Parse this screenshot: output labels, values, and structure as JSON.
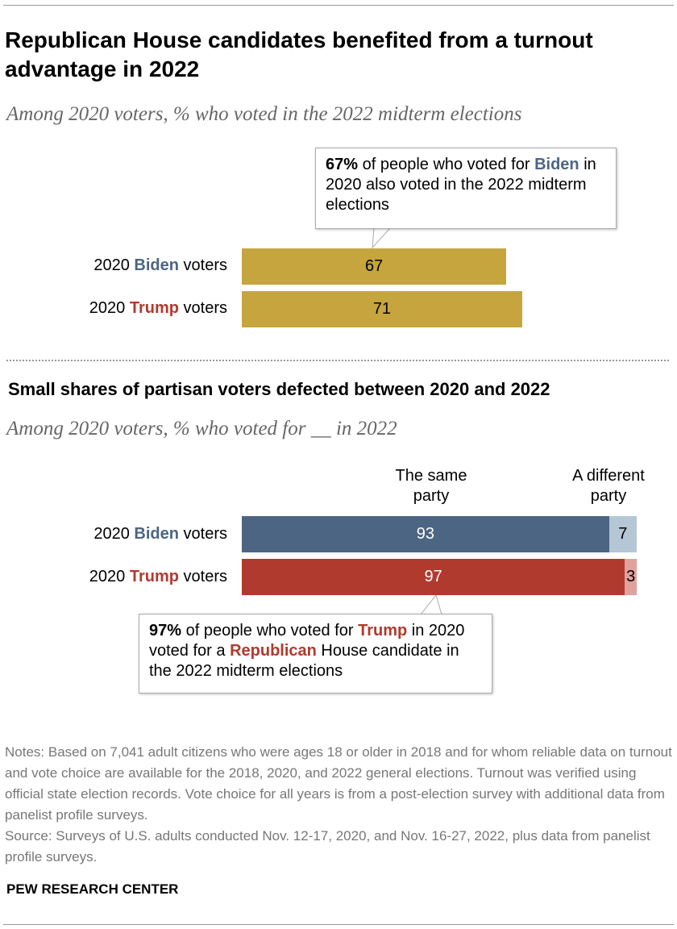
{
  "title": "Republican House candidates benefited from a turnout advantage in 2022",
  "colors": {
    "gold": "#C6A53E",
    "biden": "#4C6583",
    "biden_light": "#B5C6D5",
    "trump": "#B03A2E",
    "trump_light": "#E1A19C"
  },
  "chart_data": [
    {
      "type": "bar",
      "subtitle": "Among 2020 voters, % who voted in the 2022 midterm elections",
      "categories": [
        {
          "prefix": "2020 ",
          "name": "Biden",
          "suffix": " voters"
        },
        {
          "prefix": "2020 ",
          "name": "Trump",
          "suffix": " voters"
        }
      ],
      "values": [
        67,
        71
      ],
      "xlim": [
        0,
        100
      ],
      "callout": {
        "bold": "67%",
        "text1": " of people who voted for ",
        "party": "Biden",
        "text2": " in 2020 also voted in the 2022 midterm elections"
      }
    },
    {
      "type": "bar",
      "stacked": true,
      "title": "Small shares of partisan voters defected between 2020 and 2022",
      "subtitle": "Among 2020 voters, % who voted for __ in 2022",
      "categories": [
        {
          "prefix": "2020 ",
          "name": "Biden",
          "suffix": " voters"
        },
        {
          "prefix": "2020 ",
          "name": "Trump",
          "suffix": " voters"
        }
      ],
      "series": [
        {
          "name": "The same party",
          "values": [
            93,
            97
          ]
        },
        {
          "name": "A different party",
          "values": [
            7,
            3
          ]
        }
      ],
      "xlim": [
        0,
        100
      ],
      "callout": {
        "bold": "97%",
        "text1": " of people who voted for ",
        "party": "Trump",
        "text2": " in 2020 voted for a ",
        "party2": "Republican",
        "text3": " House candidate in the 2022 midterm elections"
      }
    }
  ],
  "notes": "Notes: Based on 7,041 adult citizens who were ages 18 or older in 2018 and for whom reliable data on turnout and vote choice are available for the 2018, 2020, and 2022 general elections. Turnout was verified using official state election records. Vote choice for all years is from a post-election survey with additional data from panelist profile surveys.",
  "source": "Source: Surveys of U.S. adults conducted Nov. 12-17, 2020, and Nov. 16-27, 2022, plus data from panelist profile surveys.",
  "logo": "PEW RESEARCH CENTER"
}
